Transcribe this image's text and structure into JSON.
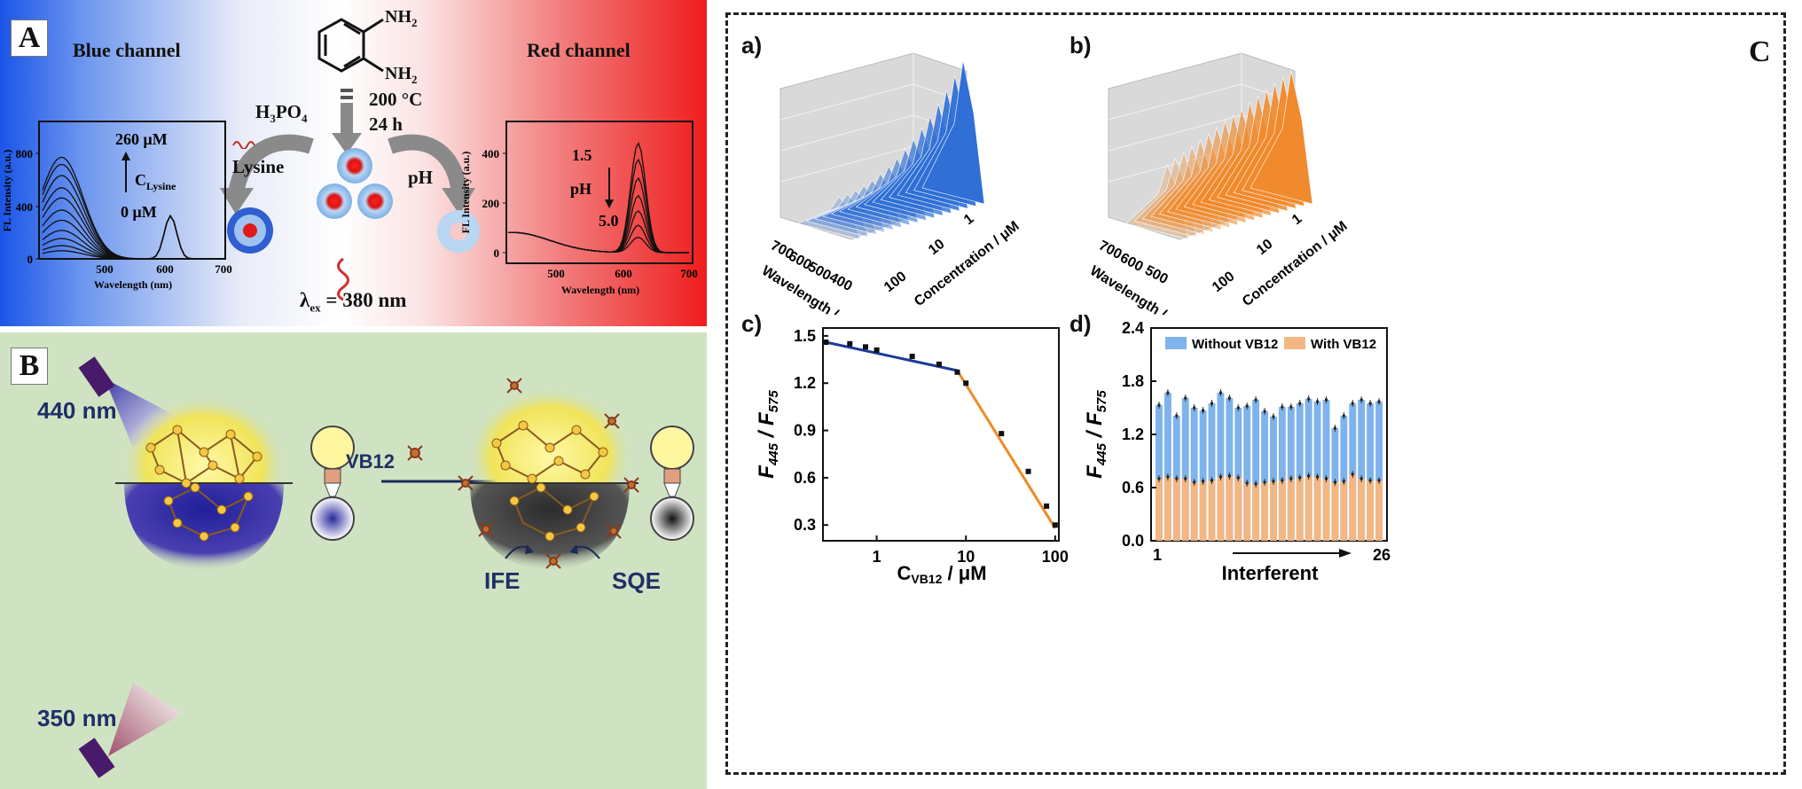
{
  "panel_a": {
    "label": "A",
    "blue_channel": "Blue channel",
    "red_channel": "Red channel",
    "reagent_top1": "NH",
    "reagent_top1_sub": "2",
    "reagent_top2": "NH",
    "reagent_top2_sub": "2",
    "acid": "H",
    "acid_sub1": "3",
    "acid_mid": "PO",
    "acid_sub2": "4",
    "temp": "200 °C",
    "time": "24 h",
    "lysine": "Lysine",
    "ph": "pH",
    "excitation_prefix": "λ",
    "excitation_sub": "ex",
    "excitation_value": " = 380 nm",
    "left_plot": {
      "ylabel": "FL Intensity (a.u.)",
      "xlabel": "Wavelength (nm)",
      "yticks": [
        "0",
        "400",
        "800"
      ],
      "xticks": [
        "500",
        "600",
        "700"
      ],
      "conc_high": "260 μM",
      "conc_low": "0 μM",
      "conc_label": "C",
      "conc_sub": "Lysine"
    },
    "right_plot": {
      "ylabel": "FL Intensity (a.u.)",
      "xlabel": "Wavelength (nm)",
      "yticks": [
        "0",
        "200",
        "400"
      ],
      "xticks": [
        "500",
        "600",
        "700"
      ],
      "ph_high": "1.5",
      "ph_low": "5.0",
      "ph_label": "pH"
    }
  },
  "panel_b": {
    "label": "B",
    "light_top": "440 nm",
    "light_bottom": "350 nm",
    "reagent": "VB12",
    "ife": "IFE",
    "sqe": "SQE"
  },
  "panel_c": {
    "label": "C",
    "sub_a": "a)",
    "sub_b": "b)",
    "sub_c": "c)",
    "sub_d": "d)",
    "a3d": {
      "wavelength_label": "Wavelength / nm",
      "wl_ticks": [
        "700",
        "600",
        "500",
        "400"
      ],
      "conc_label": "Concentration / μM",
      "conc_ticks": [
        "100",
        "10",
        "1"
      ],
      "color": "#2f6fd6"
    },
    "b3d": {
      "wavelength_label": "Wavelength / nm",
      "wl_ticks": [
        "700",
        "600",
        "500"
      ],
      "conc_label": "Concentration / μM",
      "conc_ticks": [
        "100",
        "10",
        "1"
      ],
      "color": "#f08a2c"
    },
    "c_plot": {
      "ylabel_main": "F",
      "ylabel_sub1": "445",
      "ylabel_sep": " / F",
      "ylabel_sub2": "575",
      "xlabel_main": "C",
      "xlabel_sub": "VB12",
      "xlabel_unit": " / μM",
      "yticks": [
        "0.3",
        "0.6",
        "0.9",
        "1.2",
        "1.5"
      ],
      "xticks": [
        "1",
        "10",
        "100"
      ]
    },
    "d_plot": {
      "ylabel_main": "F",
      "ylabel_sub1": "445",
      "ylabel_sep": " / F",
      "ylabel_sub2": "575",
      "xlabel": "Interferent",
      "yticks": [
        "0.0",
        "0.6",
        "1.2",
        "1.8",
        "2.4"
      ],
      "xtick_first": "1",
      "xtick_last": "26",
      "legend_without": "Without VB12",
      "legend_with": "With VB12"
    }
  },
  "chart_data": [
    {
      "type": "scatter",
      "title": "",
      "xlabel": "C VB12 / μM",
      "ylabel": "F445 / F575",
      "xscale": "log",
      "xlim": [
        0.25,
        110
      ],
      "ylim": [
        0.2,
        1.55
      ],
      "series": [
        {
          "values_x": [
            0.27,
            0.5,
            0.75,
            1.0,
            2.5,
            5.0,
            8.0,
            10.0,
            25.0,
            50.0,
            80.0,
            100.0
          ],
          "values_y": [
            1.46,
            1.45,
            1.43,
            1.41,
            1.37,
            1.32,
            1.27,
            1.2,
            0.88,
            0.64,
            0.42,
            0.3
          ]
        }
      ],
      "fit_lines": [
        {
          "x": [
            0.27,
            8.0
          ],
          "y": [
            1.46,
            1.28
          ],
          "color": "#1d3a9a"
        },
        {
          "x": [
            8.0,
            100.0
          ],
          "y": [
            1.28,
            0.28
          ],
          "color": "#ef8a25"
        }
      ]
    },
    {
      "type": "bar",
      "title": "",
      "xlabel": "Interferent",
      "ylabel": "F445 / F575",
      "ylim": [
        0,
        2.4
      ],
      "categories": [
        "1",
        "2",
        "3",
        "4",
        "5",
        "6",
        "7",
        "8",
        "9",
        "10",
        "11",
        "12",
        "13",
        "14",
        "15",
        "16",
        "17",
        "18",
        "19",
        "20",
        "21",
        "22",
        "23",
        "24",
        "25",
        "26"
      ],
      "series": [
        {
          "name": "Without VB12",
          "color": "#7fb3ec",
          "values": [
            1.53,
            1.67,
            1.41,
            1.61,
            1.5,
            1.47,
            1.55,
            1.67,
            1.61,
            1.5,
            1.52,
            1.59,
            1.46,
            1.4,
            1.51,
            1.51,
            1.55,
            1.6,
            1.57,
            1.59,
            1.27,
            1.41,
            1.55,
            1.59,
            1.55,
            1.57
          ]
        },
        {
          "name": "With VB12",
          "color": "#f2b784",
          "values": [
            0.7,
            0.72,
            0.7,
            0.7,
            0.66,
            0.67,
            0.68,
            0.72,
            0.73,
            0.71,
            0.65,
            0.64,
            0.66,
            0.67,
            0.68,
            0.7,
            0.71,
            0.73,
            0.72,
            0.7,
            0.66,
            0.67,
            0.75,
            0.7,
            0.68,
            0.68
          ]
        }
      ]
    }
  ]
}
